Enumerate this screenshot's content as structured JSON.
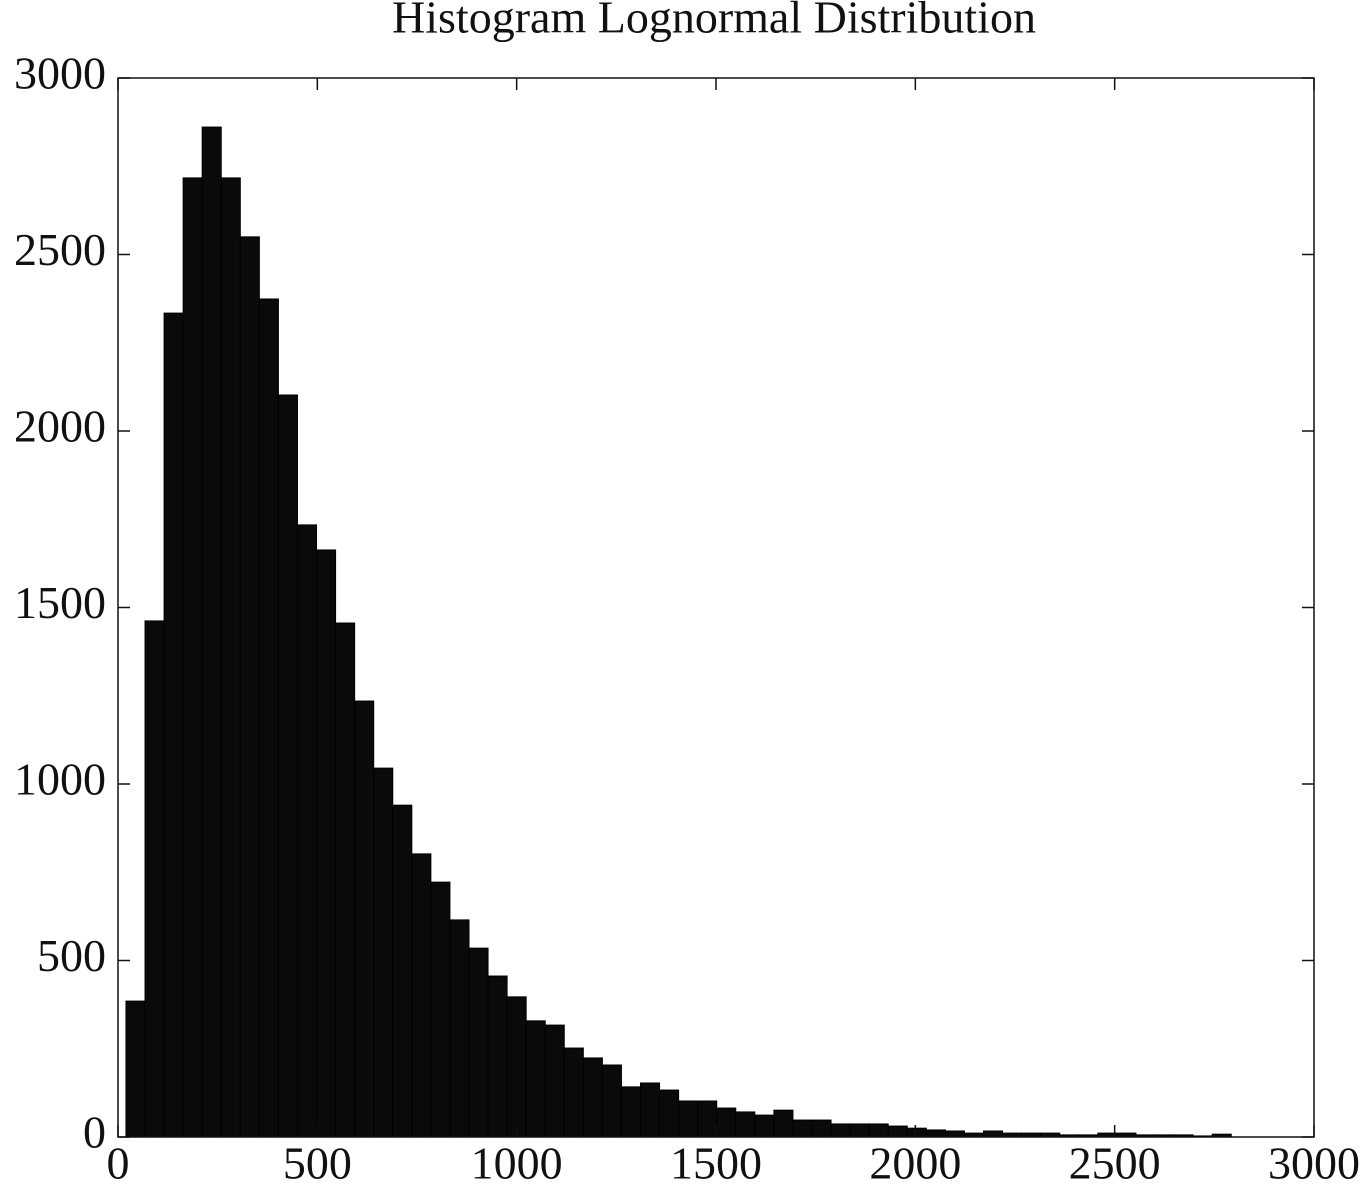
{
  "chart_data": {
    "type": "histogram",
    "title": "Histogram Lognormal Distribution",
    "bins": [
      20,
      67.8,
      115.6,
      163.4,
      211.2,
      259,
      306.8,
      354.6,
      402.4,
      450.2,
      498,
      545.8,
      593.6,
      641.4,
      689.2,
      737,
      784.8,
      832.6,
      880.4,
      928.2,
      976,
      1023.8,
      1071.6,
      1119.4,
      1167.2,
      1215,
      1262.8,
      1310.6,
      1358.4,
      1406.2,
      1454,
      1501.8,
      1549.6,
      1597.4,
      1645.2,
      1693,
      1740.8,
      1788.6,
      1836.4,
      1884.2,
      1932,
      1979.8,
      2027.6,
      2075.4,
      2123.2,
      2171,
      2218.8,
      2266.6,
      2314.4,
      2362.2,
      2410,
      2457.8,
      2505.6,
      2553.4,
      2601.2,
      2649,
      2696.8,
      2744.6,
      2792.4
    ],
    "values": [
      385,
      1462,
      2334,
      2717,
      2861,
      2717,
      2550,
      2374,
      2102,
      1734,
      1663,
      1456,
      1235,
      1045,
      940,
      802,
      722,
      615,
      535,
      456,
      397,
      329,
      317,
      252,
      224,
      204,
      142,
      153,
      133,
      102,
      102,
      82,
      71,
      62,
      76,
      48,
      48,
      37,
      37,
      37,
      31,
      25,
      20,
      17,
      11,
      17,
      11,
      11,
      11,
      6,
      6,
      11,
      11,
      6,
      6,
      6,
      3,
      8
    ],
    "color": "#0a0a0a",
    "xlim": [
      0,
      3000
    ],
    "xticks": [
      0,
      500,
      1000,
      1500,
      2000,
      2500,
      3000
    ],
    "ylim": [
      0,
      3000
    ],
    "yticks": [
      0,
      500,
      1000,
      1500,
      2000,
      2500,
      3000
    ]
  }
}
